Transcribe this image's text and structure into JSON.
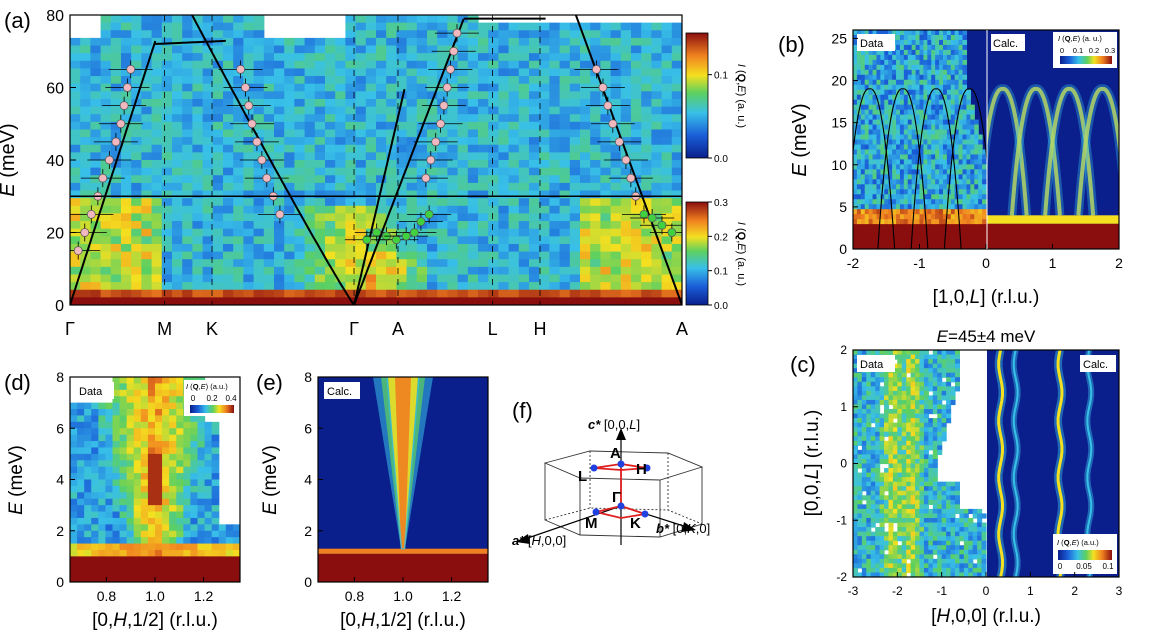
{
  "colors": {
    "dark_blue": "#0a1f8c",
    "blue": "#1a5ed8",
    "cyan": "#38c0e8",
    "green": "#5cd060",
    "yellow": "#f4e020",
    "orange": "#f08020",
    "dark_red": "#8a0e0e",
    "pink_marker": "#f2b8c0",
    "green_marker": "#40d040",
    "dispersion_line": "#000000",
    "bz_red": "#e02020",
    "bz_blue": "#2040e0"
  },
  "chart_data": [
    {
      "id": "a",
      "type": "heatmap",
      "panel_label": "(a)",
      "ylabel_var": "E",
      "ylabel_unit": " (meV)",
      "ylim": [
        0,
        80
      ],
      "yticks": [
        "0",
        "20",
        "40",
        "60",
        "80"
      ],
      "path_labels": [
        "Γ",
        "M",
        "K",
        "Γ",
        "A",
        "L",
        "H",
        "A"
      ],
      "path_positions": [
        0,
        0.577,
        0.866,
        1.732,
        2.0,
        2.577,
        2.866,
        3.732
      ],
      "split_energy": 30,
      "colorbar_upper": {
        "label_prefix": "I",
        "label_q": "Q",
        "label_var": "E",
        "label_rest": " (a. u.)",
        "range": [
          0.0,
          0.15
        ],
        "ticks": [
          "0.0",
          "0.1"
        ]
      },
      "colorbar_lower": {
        "label_prefix": "I",
        "label_q": "Q",
        "label_var": "E",
        "label_rest": " (a. u.)",
        "range": [
          0.0,
          0.3
        ],
        "ticks": [
          "0.0",
          "0.1",
          "0.2",
          "0.3"
        ]
      },
      "pink_points": [
        {
          "x": 0.05,
          "y": 15
        },
        {
          "x": 0.09,
          "y": 20
        },
        {
          "x": 0.13,
          "y": 25
        },
        {
          "x": 0.17,
          "y": 30
        },
        {
          "x": 0.2,
          "y": 35
        },
        {
          "x": 0.24,
          "y": 40
        },
        {
          "x": 0.28,
          "y": 45
        },
        {
          "x": 0.31,
          "y": 50
        },
        {
          "x": 0.33,
          "y": 55
        },
        {
          "x": 0.35,
          "y": 60
        },
        {
          "x": 0.37,
          "y": 65
        },
        {
          "x": 1.04,
          "y": 65
        },
        {
          "x": 1.07,
          "y": 60
        },
        {
          "x": 1.09,
          "y": 55
        },
        {
          "x": 1.11,
          "y": 50
        },
        {
          "x": 1.14,
          "y": 45
        },
        {
          "x": 1.17,
          "y": 40
        },
        {
          "x": 1.2,
          "y": 35
        },
        {
          "x": 1.24,
          "y": 30
        },
        {
          "x": 1.28,
          "y": 25
        },
        {
          "x": 2.17,
          "y": 35
        },
        {
          "x": 2.2,
          "y": 40
        },
        {
          "x": 2.23,
          "y": 45
        },
        {
          "x": 2.26,
          "y": 50
        },
        {
          "x": 2.28,
          "y": 55
        },
        {
          "x": 2.3,
          "y": 60
        },
        {
          "x": 2.32,
          "y": 65
        },
        {
          "x": 2.34,
          "y": 70
        },
        {
          "x": 2.36,
          "y": 75
        },
        {
          "x": 3.21,
          "y": 65
        },
        {
          "x": 3.25,
          "y": 60
        },
        {
          "x": 3.28,
          "y": 55
        },
        {
          "x": 3.31,
          "y": 50
        },
        {
          "x": 3.35,
          "y": 45
        },
        {
          "x": 3.39,
          "y": 40
        },
        {
          "x": 3.42,
          "y": 35
        },
        {
          "x": 3.45,
          "y": 30
        }
      ],
      "green_points": [
        {
          "x": 1.81,
          "y": 18
        },
        {
          "x": 1.87,
          "y": 20
        },
        {
          "x": 1.93,
          "y": 19
        },
        {
          "x": 1.99,
          "y": 18
        },
        {
          "x": 2.05,
          "y": 19
        },
        {
          "x": 2.1,
          "y": 20
        },
        {
          "x": 2.14,
          "y": 23
        },
        {
          "x": 2.19,
          "y": 25
        },
        {
          "x": 3.5,
          "y": 25
        },
        {
          "x": 3.55,
          "y": 24
        },
        {
          "x": 3.61,
          "y": 22
        },
        {
          "x": 3.67,
          "y": 20
        }
      ]
    },
    {
      "id": "b",
      "type": "heatmap",
      "panel_label": "(b)",
      "xlabel": "[1,0,",
      "xlabel_var": "L",
      "xlabel_rest": "] (r.l.u.)",
      "ylabel_var": "E",
      "ylabel_unit": " (meV)",
      "xlim": [
        -2,
        2
      ],
      "ylim": [
        0,
        26
      ],
      "xticks": [
        "-2",
        "-1",
        "0",
        "1",
        "2"
      ],
      "yticks": [
        "0",
        "5",
        "10",
        "15",
        "20",
        "25"
      ],
      "data_label": "Data",
      "calc_label": "Calc.",
      "colorbar": {
        "label_prefix": "I",
        "label_q": "Q",
        "label_var": "E",
        "label_rest": " (a. u.)",
        "ticks": [
          "0",
          "0.1",
          "0.2",
          "0.3"
        ]
      }
    },
    {
      "id": "c",
      "type": "heatmap",
      "panel_label": "(c)",
      "title_var": "E",
      "title_rest": "=45±4 meV",
      "xlabel_open": "[",
      "xlabel_var": "H",
      "xlabel_rest": ",0,0] (r.l.u.)",
      "ylabel_open": "[0,0,",
      "ylabel_var": "L",
      "ylabel_rest": "] (r.l.u.)",
      "xlim": [
        -3,
        3
      ],
      "ylim": [
        -2,
        2
      ],
      "xticks": [
        "-3",
        "-2",
        "-1",
        "0",
        "1",
        "2",
        "3"
      ],
      "yticks": [
        "-2",
        "-1",
        "0",
        "1",
        "2"
      ],
      "data_label": "Data",
      "calc_label": "Calc.",
      "colorbar": {
        "label_prefix": "I",
        "label_q": "Q",
        "label_var": "E",
        "label_rest": " (a.u.)",
        "ticks": [
          "0",
          "0.05",
          "0.1"
        ]
      }
    },
    {
      "id": "d",
      "type": "heatmap",
      "panel_label": "(d)",
      "xlabel_open": "[0,",
      "xlabel_var": "H",
      "xlabel_rest": ",1/2] (r.l.u.)",
      "ylabel_var": "E",
      "ylabel_unit": " (meV)",
      "xlim": [
        0.65,
        1.35
      ],
      "ylim": [
        0,
        8
      ],
      "xticks": [
        "0.8",
        "1.0",
        "1.2"
      ],
      "yticks": [
        "0",
        "2",
        "4",
        "6",
        "8"
      ],
      "data_label": "Data",
      "colorbar": {
        "label_prefix": "I",
        "label_q": "Q",
        "label_var": "E",
        "label_rest": " (a.u.)",
        "ticks": [
          "0",
          "0.2",
          "0.4"
        ]
      }
    },
    {
      "id": "e",
      "type": "heatmap",
      "panel_label": "(e)",
      "xlabel_open": "[0,",
      "xlabel_var": "H",
      "xlabel_rest": ",1/2] (r.l.u.)",
      "ylabel_var": "E",
      "ylabel_unit": " (meV)",
      "xlim": [
        0.65,
        1.35
      ],
      "ylim": [
        0,
        8
      ],
      "xticks": [
        "0.8",
        "1.0",
        "1.2"
      ],
      "yticks": [
        "0",
        "2",
        "4",
        "6",
        "8"
      ],
      "calc_label": "Calc."
    }
  ],
  "bz_panel": {
    "panel_label": "(f)",
    "c_star": "c*",
    "c_vec": " [0,0,",
    "c_var": "L",
    "c_end": "]",
    "a_star": "a*",
    "a_vec": " [",
    "a_var": "H",
    "a_end": ",0,0]",
    "b_star": "b*",
    "b_vec": " [0,",
    "b_var": "K",
    "b_end": ",0]",
    "points": [
      "A",
      "L",
      "H",
      "Γ",
      "M",
      "K"
    ]
  }
}
